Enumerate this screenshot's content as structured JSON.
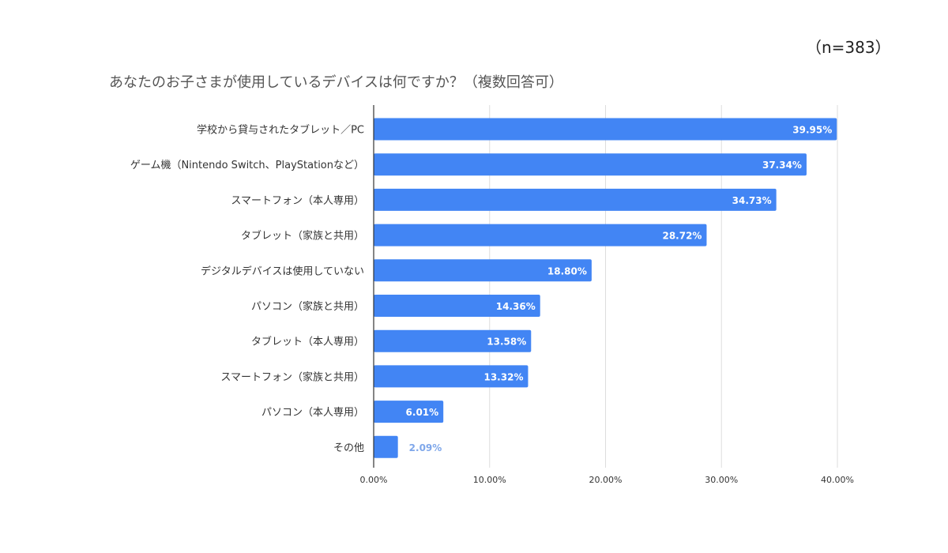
{
  "sample_note": "（n=383）",
  "chart_data": {
    "type": "bar",
    "orientation": "horizontal",
    "title": "あなたのお子さまが使用しているデバイスは何ですか？（複数回答可）",
    "categories": [
      "学校から貸与されたタブレット／PC",
      "ゲーム機（Nintendo Switch、PlayStationなど）",
      "スマートフォン（本人専用）",
      "タブレット（家族と共用）",
      "デジタルデバイスは使用していない",
      "パソコン（家族と共用）",
      "タブレット（本人専用）",
      "スマートフォン（家族と共用）",
      "パソコン（本人専用）",
      "その他"
    ],
    "values": [
      39.95,
      37.34,
      34.73,
      28.72,
      18.8,
      14.36,
      13.58,
      13.32,
      6.01,
      2.09
    ],
    "data_labels": [
      "39.95%",
      "37.34%",
      "34.73%",
      "28.72%",
      "18.80%",
      "14.36%",
      "13.58%",
      "13.32%",
      "6.01%",
      "2.09%"
    ],
    "xlim": [
      0,
      40
    ],
    "x_ticks": [
      "0.00%",
      "10.00%",
      "20.00%",
      "30.00%",
      "40.00%"
    ],
    "grid": true,
    "bar_color": "#4285f4",
    "xlabel": "",
    "ylabel": ""
  }
}
